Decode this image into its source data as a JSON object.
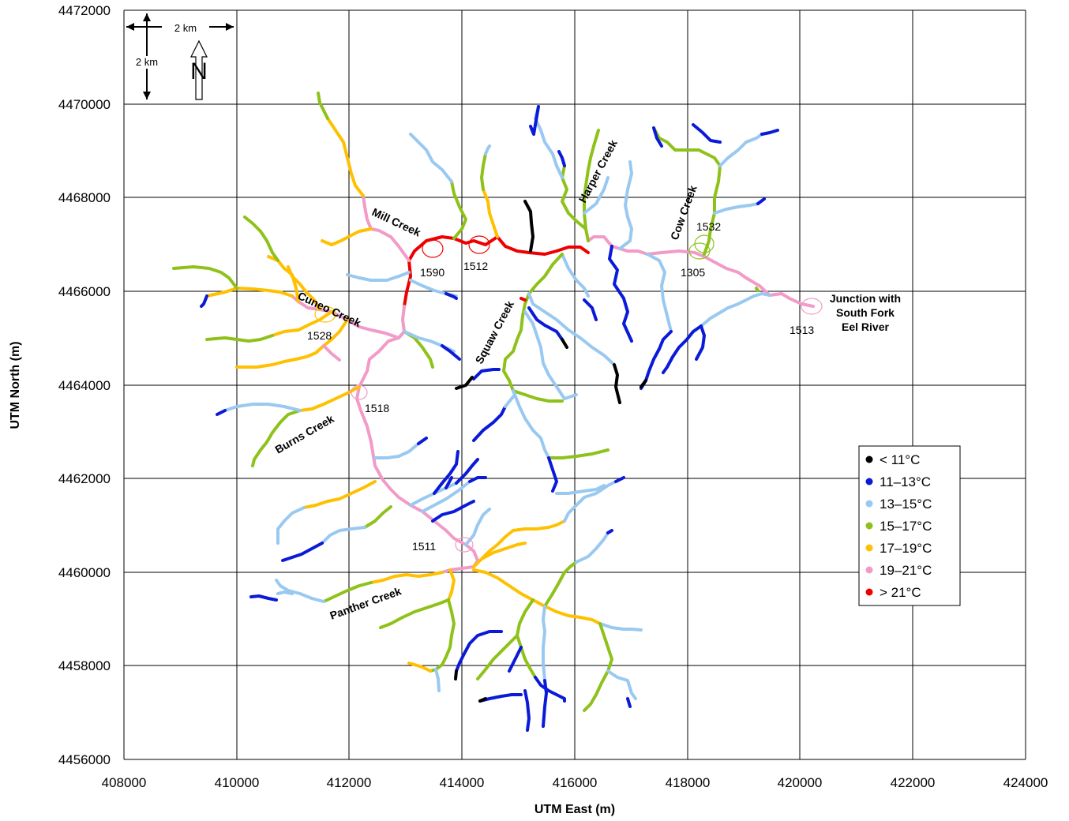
{
  "axes": {
    "xlabel": "UTM East (m)",
    "ylabel": "UTM North (m)",
    "xlim": [
      408000,
      424000
    ],
    "ylim": [
      4456000,
      4472000
    ],
    "xticks": [
      "408000",
      "410000",
      "412000",
      "414000",
      "416000",
      "418000",
      "420000",
      "422000",
      "424000"
    ],
    "yticks": [
      "4456000",
      "4458000",
      "4460000",
      "4462000",
      "4464000",
      "4466000",
      "4468000",
      "4470000",
      "4472000"
    ],
    "grid": true
  },
  "scale_bar": {
    "horizontal": "2 km",
    "vertical": "2 km",
    "north": "N"
  },
  "legend": {
    "placement": "right",
    "items": [
      {
        "label": "< 11°C",
        "color": "#000000"
      },
      {
        "label": "11–13°C",
        "color": "#0a1ad8"
      },
      {
        "label": "13–15°C",
        "color": "#99c9f0"
      },
      {
        "label": "15–17°C",
        "color": "#8ec21a"
      },
      {
        "label": "17–19°C",
        "color": "#ffc000"
      },
      {
        "label": "19–21°C",
        "color": "#f29ac8"
      },
      {
        "label": "> 21°C",
        "color": "#ee0000"
      }
    ]
  },
  "creek_labels": {
    "mill": "Mill Creek",
    "cuneo": "Cuneo Creek",
    "burns": "Burns Creek",
    "panther": "Panther Creek",
    "squaw": "Squaw Creek",
    "harper": "Harper Creek",
    "cow": "Cow Creek",
    "junction_1": "Junction with",
    "junction_2": "South Fork",
    "junction_3": "Eel River"
  },
  "sites": {
    "s1590": "1590",
    "s1512": "1512",
    "s1532": "1532",
    "s1305": "1305",
    "s1513": "1513",
    "s1528": "1528",
    "s1518": "1518",
    "s1511": "1511"
  },
  "chart_data": {
    "type": "scatter",
    "xlabel": "UTM East (m)",
    "ylabel": "UTM North (m)",
    "xlim": [
      408000,
      424000
    ],
    "ylim": [
      4456000,
      4472000
    ],
    "series": [
      {
        "name": "< 11°C",
        "color": "#000000"
      },
      {
        "name": "11–13°C",
        "color": "#0a1ad8"
      },
      {
        "name": "13–15°C",
        "color": "#99c9f0"
      },
      {
        "name": "15–17°C",
        "color": "#8ec21a"
      },
      {
        "name": "17–19°C",
        "color": "#ffc000"
      },
      {
        "name": "19–21°C",
        "color": "#f29ac8"
      },
      {
        "name": "> 21°C",
        "color": "#ee0000"
      }
    ],
    "sites": [
      {
        "label": "1590",
        "x": 413450,
        "y": 4466900
      },
      {
        "label": "1512",
        "x": 414300,
        "y": 4466950
      },
      {
        "label": "1532",
        "x": 418350,
        "y": 4466950
      },
      {
        "label": "1305",
        "x": 418250,
        "y": 4466850
      },
      {
        "label": "1513",
        "x": 420200,
        "y": 4465650
      },
      {
        "label": "1528",
        "x": 411550,
        "y": 4465450
      },
      {
        "label": "1518",
        "x": 412150,
        "y": 4463800
      },
      {
        "label": "1511",
        "x": 414050,
        "y": 4460550
      }
    ]
  }
}
